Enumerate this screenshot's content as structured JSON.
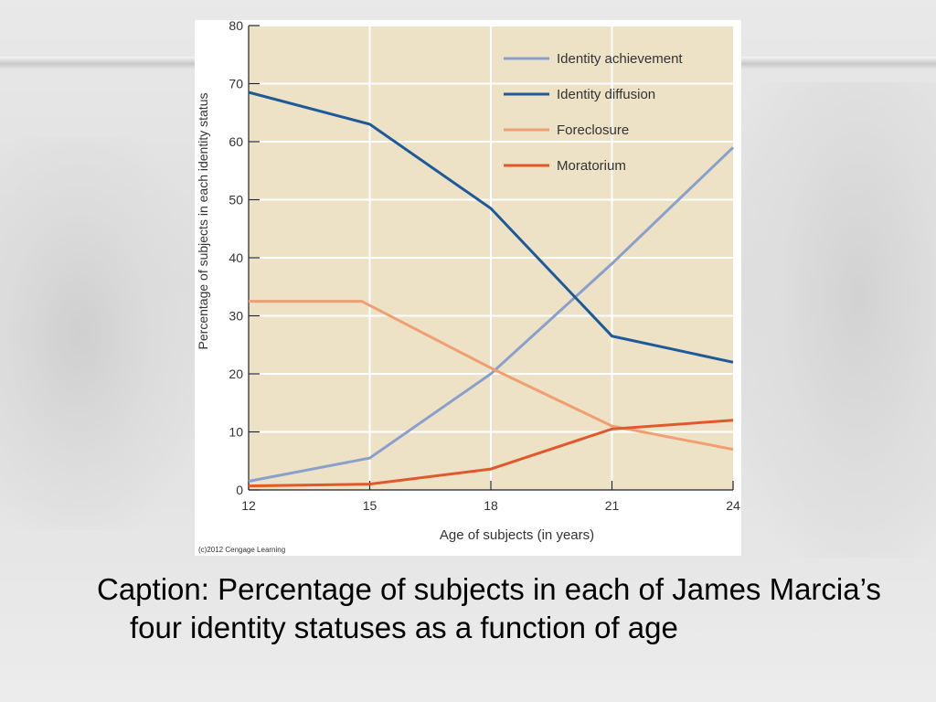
{
  "caption": "Caption: Percentage of subjects in each of James Marcia’s four identity statuses as a function of age",
  "copyright": "(c)2012 Cengage Learning",
  "colors": {
    "plot_background": "#eee2c6",
    "grid": "#ffffff",
    "identity_achievement": "#8aa0cc",
    "identity_diffusion": "#1c5a9a",
    "foreclosure": "#ef9f72",
    "moratorium": "#e2582a"
  },
  "chart_data": {
    "type": "line",
    "title": "",
    "xlabel": "Age of subjects (in years)",
    "ylabel": "Percentage of subjects in each identity status",
    "x": [
      12,
      15,
      18,
      21,
      24
    ],
    "xlim": [
      12,
      24
    ],
    "ylim": [
      0,
      80
    ],
    "x_ticks": [
      "12",
      "15",
      "18",
      "21",
      "24"
    ],
    "y_ticks": [
      "0",
      "10",
      "20",
      "30",
      "40",
      "50",
      "60",
      "70",
      "80"
    ],
    "grid": true,
    "legend_position": "top-right",
    "series": [
      {
        "name": "Identity achievement",
        "color_key": "identity_achievement",
        "x": [
          12,
          15,
          18,
          21,
          24
        ],
        "values": [
          1.5,
          5.5,
          20,
          39,
          59
        ]
      },
      {
        "name": "Identity diffusion",
        "color_key": "identity_diffusion",
        "x": [
          12,
          15,
          18,
          21,
          24
        ],
        "values": [
          68.5,
          63,
          48.5,
          26.5,
          22
        ]
      },
      {
        "name": "Foreclosure",
        "color_key": "foreclosure",
        "x": [
          12,
          14.8,
          18,
          21,
          24
        ],
        "values": [
          32.5,
          32.5,
          21,
          11,
          7
        ]
      },
      {
        "name": "Moratorium",
        "color_key": "moratorium",
        "x": [
          12,
          15,
          18,
          21,
          24
        ],
        "values": [
          0.7,
          1,
          3.6,
          10.5,
          12
        ]
      }
    ]
  }
}
